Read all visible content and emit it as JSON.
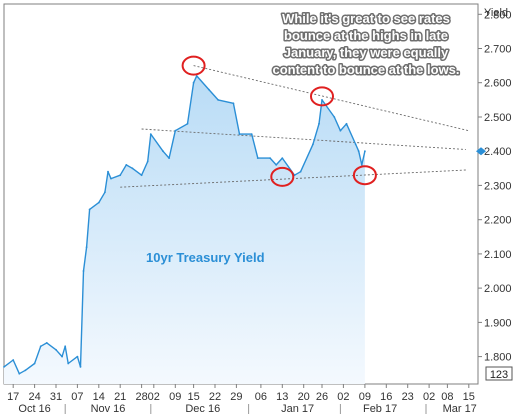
{
  "chart_data": {
    "type": "area",
    "title": "",
    "xlabel": "",
    "ylabel": "Yield",
    "ylim": [
      1.72,
      2.83
    ],
    "y_ticks": [
      1.8,
      1.9,
      2.0,
      2.1,
      2.2,
      2.3,
      2.4,
      2.5,
      2.6,
      2.7,
      2.8
    ],
    "y_tick_labels": [
      "1.800",
      "1.900",
      "2.000",
      "2.100",
      "2.200",
      "2.300",
      "2.400",
      "2.500",
      "2.600",
      "2.700",
      "2.800"
    ],
    "x_range": [
      "2016-10-14",
      "2017-03-18"
    ],
    "x_ticks": [
      "2016-10-17",
      "2016-10-24",
      "2016-10-31",
      "2016-11-07",
      "2016-11-14",
      "2016-11-21",
      "2016-11-28",
      "2016-12-02",
      "2016-12-09",
      "2016-12-15",
      "2016-12-22",
      "2016-12-29",
      "2017-01-06",
      "2017-01-13",
      "2017-01-20",
      "2017-01-26",
      "2017-02-02",
      "2017-02-09",
      "2017-02-16",
      "2017-02-23",
      "2017-03-02",
      "2017-03-08",
      "2017-03-15"
    ],
    "x_tick_labels": [
      "17",
      "24",
      "31",
      "07",
      "14",
      "21",
      "28",
      "02",
      "09",
      "15",
      "22",
      "29",
      "06",
      "13",
      "20",
      "26",
      "02",
      "09",
      "16",
      "23",
      "02",
      "08",
      "15"
    ],
    "months": [
      {
        "label": "Oct 16",
        "date": "2016-10-24"
      },
      {
        "label": "Nov 16",
        "date": "2016-11-17"
      },
      {
        "label": "Dec 16",
        "date": "2016-12-18"
      },
      {
        "label": "Jan 17",
        "date": "2017-01-18"
      },
      {
        "label": "Feb 17",
        "date": "2017-02-14"
      },
      {
        "label": "Mar 17",
        "date": "2017-03-12"
      }
    ],
    "series": [
      {
        "name": "10yr Treasury Yield",
        "color": "#2b8fd6",
        "x": [
          "2016-10-14",
          "2016-10-17",
          "2016-10-19",
          "2016-10-21",
          "2016-10-24",
          "2016-10-26",
          "2016-10-28",
          "2016-10-31",
          "2016-11-02",
          "2016-11-03",
          "2016-11-04",
          "2016-11-07",
          "2016-11-08",
          "2016-11-09",
          "2016-11-10",
          "2016-11-11",
          "2016-11-14",
          "2016-11-16",
          "2016-11-17",
          "2016-11-18",
          "2016-11-21",
          "2016-11-23",
          "2016-11-25",
          "2016-11-28",
          "2016-11-30",
          "2016-12-01",
          "2016-12-05",
          "2016-12-07",
          "2016-12-09",
          "2016-12-13",
          "2016-12-15",
          "2016-12-16",
          "2016-12-20",
          "2016-12-23",
          "2016-12-28",
          "2016-12-30",
          "2017-01-03",
          "2017-01-05",
          "2017-01-09",
          "2017-01-11",
          "2017-01-13",
          "2017-01-17",
          "2017-01-19",
          "2017-01-23",
          "2017-01-25",
          "2017-01-26",
          "2017-01-30",
          "2017-02-01",
          "2017-02-03",
          "2017-02-06",
          "2017-02-07",
          "2017-02-08",
          "2017-02-09"
        ],
        "values": [
          1.77,
          1.79,
          1.75,
          1.76,
          1.78,
          1.83,
          1.84,
          1.82,
          1.8,
          1.83,
          1.78,
          1.8,
          1.77,
          2.05,
          2.12,
          2.23,
          2.25,
          2.28,
          2.34,
          2.32,
          2.33,
          2.36,
          2.35,
          2.33,
          2.37,
          2.45,
          2.4,
          2.38,
          2.46,
          2.48,
          2.6,
          2.62,
          2.58,
          2.55,
          2.54,
          2.45,
          2.45,
          2.38,
          2.38,
          2.36,
          2.38,
          2.33,
          2.34,
          2.42,
          2.48,
          2.55,
          2.5,
          2.46,
          2.48,
          2.42,
          2.4,
          2.36,
          2.4
        ]
      }
    ],
    "last_value": {
      "label": "2.400",
      "value": 2.4
    },
    "trend_lines": [
      {
        "from": {
          "x": "2016-12-15",
          "y": 2.65
        },
        "to": {
          "x": "2017-03-15",
          "y": 2.46
        }
      },
      {
        "from": {
          "x": "2016-11-28",
          "y": 2.465
        },
        "to": {
          "x": "2017-03-14",
          "y": 2.405
        }
      },
      {
        "from": {
          "x": "2016-11-21",
          "y": 2.295
        },
        "to": {
          "x": "2017-03-14",
          "y": 2.345
        }
      }
    ],
    "highlights": [
      {
        "x": "2016-12-15",
        "y": 2.65
      },
      {
        "x": "2017-01-26",
        "y": 2.56
      },
      {
        "x": "2017-01-13",
        "y": 2.325
      },
      {
        "x": "2017-02-09",
        "y": 2.33
      }
    ],
    "annotation": {
      "lines": [
        "While it's great to see rates",
        "bounce at the highs in late",
        "January, they were equally",
        "content to bounce at the lows."
      ]
    },
    "series_label": "10yr Treasury Yield",
    "right_badge": "123",
    "grid": false,
    "legend": "none"
  }
}
